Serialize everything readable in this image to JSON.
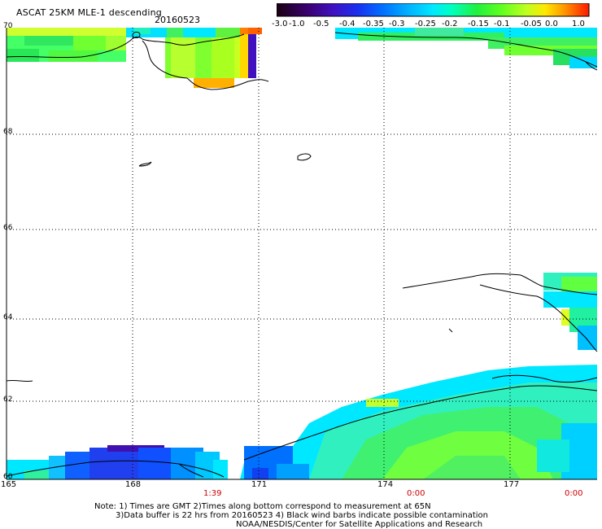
{
  "title": "ASCAT 25KM MLE-1 descending",
  "date": "20160523",
  "colorbar": {
    "ticks": [
      "-3.0",
      "-1.0",
      "-0.5",
      "-0.4",
      "-0.35",
      "-0.3",
      "-0.25",
      "-0.2",
      "-0.15",
      "-0.1",
      "-0.05",
      "0.0",
      "1.0"
    ],
    "colors": [
      "#1a0010",
      "#3a0070",
      "#4a10b0",
      "#2020e0",
      "#0060ff",
      "#00a8ff",
      "#00e0ff",
      "#00ffb0",
      "#10f040",
      "#60ff20",
      "#c0ff20",
      "#ffe000",
      "#ffa000",
      "#ff5000",
      "#ff1000"
    ]
  },
  "latitude_labels": [
    "70",
    "68",
    "66",
    "64",
    "62",
    "60"
  ],
  "longitude_labels": [
    "165",
    "168",
    "171",
    "174",
    "177"
  ],
  "time_labels": [
    "1:39",
    "0:00",
    "0:00"
  ],
  "notes": {
    "line1": "Note: 1) Times are GMT 2)Times along bottom correspond to measurement at 65N",
    "line2": "3)Data buffer is 22 hrs from 20160523 4) Black wind barbs indicate possible contamination",
    "line3": "NOAA/NESDIS/Center for Satellite Applications and Research"
  }
}
